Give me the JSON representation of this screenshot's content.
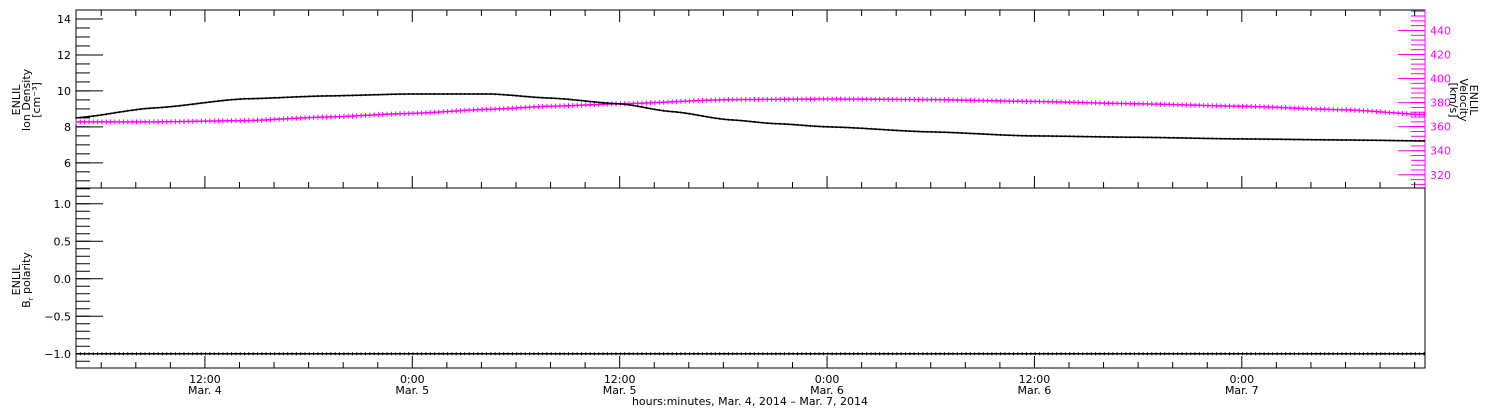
{
  "chart_data": [
    {
      "type": "line",
      "title": "",
      "ylabel_lines": [
        "ENLIL",
        "Ion Density",
        "[cm⁻³]"
      ],
      "ylim": [
        4.6,
        14.5
      ],
      "yticks": [
        6,
        8,
        10,
        12,
        14
      ],
      "ytick_labels": [
        "6",
        "8",
        "10",
        "12",
        "14"
      ],
      "y2label_lines": [
        "ENLIL",
        "Velocity",
        "[km/s]"
      ],
      "y2lim": [
        309,
        457
      ],
      "y2ticks": [
        320,
        340,
        360,
        380,
        400,
        420,
        440
      ],
      "y2tick_labels": [
        "320",
        "340",
        "360",
        "380",
        "400",
        "420",
        "440"
      ],
      "series": [
        {
          "name": "Ion Density",
          "axis": "left",
          "color": "#000000",
          "x_hours_from_mar4": [
            4.5,
            9,
            14.3,
            19,
            23.9,
            28.5,
            32,
            36,
            39,
            42.4,
            45,
            48.1,
            54,
            59.7,
            66,
            71.9,
            78,
            82.6
          ],
          "values": [
            8.5,
            9.05,
            9.56,
            9.72,
            9.83,
            9.83,
            9.6,
            9.28,
            8.85,
            8.39,
            8.18,
            8.0,
            7.72,
            7.5,
            7.42,
            7.33,
            7.27,
            7.22
          ]
        },
        {
          "name": "Velocity",
          "axis": "right",
          "color": "#ff00ff",
          "x_hours_from_mar4": [
            4.5,
            9,
            14.3,
            19,
            23.9,
            28.5,
            32,
            36,
            42.4,
            48.1,
            54,
            59.7,
            66,
            71.9,
            78,
            82.6
          ],
          "values": [
            364,
            364,
            365,
            368,
            371,
            374.5,
            377,
            379,
            382.5,
            383,
            382.5,
            381,
            379,
            377,
            374,
            370
          ]
        }
      ]
    },
    {
      "type": "line",
      "ylabel_lines": [
        "ENLIL",
        "Br polarity"
      ],
      "ylabel_main": "B",
      "ylabel_sub": "r",
      "ylabel_rest": " polarity",
      "ylim": [
        -1.19,
        1.21
      ],
      "yticks": [
        -1.0,
        -0.5,
        0.0,
        0.5,
        1.0
      ],
      "ytick_labels": [
        "−1.0",
        "−0.5",
        "0.0",
        "0.5",
        "1.0"
      ],
      "series": [
        {
          "name": "Br polarity",
          "color": "#000000",
          "x_hours_from_mar4": [
            4.5,
            82.6
          ],
          "values": [
            -1,
            -1
          ]
        }
      ]
    }
  ],
  "x_axis": {
    "xlim_hours_from_mar4": [
      4.54,
      82.6
    ],
    "ticks_hours": [
      12,
      24,
      36,
      48,
      60,
      72
    ],
    "tick_times": [
      "12:00",
      "0:00",
      "12:00",
      "0:00",
      "12:00",
      "0:00"
    ],
    "tick_dates": [
      "Mar. 4",
      "Mar. 5",
      "Mar. 5",
      "Mar. 6",
      "Mar. 6",
      "Mar. 7"
    ],
    "xlabel": "hours:minutes, Mar.  4, 2014 – Mar.  7, 2014"
  }
}
